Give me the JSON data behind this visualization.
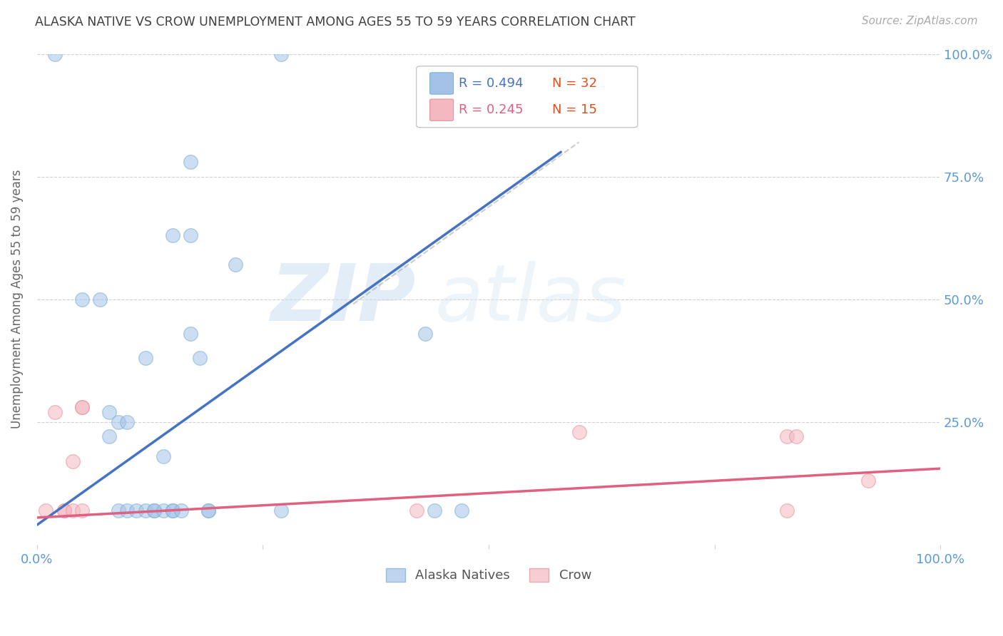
{
  "title": "ALASKA NATIVE VS CROW UNEMPLOYMENT AMONG AGES 55 TO 59 YEARS CORRELATION CHART",
  "source": "Source: ZipAtlas.com",
  "ylabel": "Unemployment Among Ages 55 to 59 years",
  "xlim": [
    0,
    1.0
  ],
  "ylim": [
    0,
    1.0
  ],
  "watermark_zip": "ZIP",
  "watermark_atlas": "atlas",
  "alaska_natives_color": "#a4c2e8",
  "alaska_natives_edge": "#7bafd4",
  "crow_color": "#f4b8c1",
  "crow_edge": "#e8909a",
  "alaska_line_color": "#4472c4",
  "crow_line_color": "#e06080",
  "alaska_scatter_x": [
    0.02,
    0.05,
    0.07,
    0.08,
    0.08,
    0.09,
    0.09,
    0.1,
    0.1,
    0.11,
    0.12,
    0.12,
    0.13,
    0.13,
    0.14,
    0.14,
    0.15,
    0.15,
    0.15,
    0.16,
    0.17,
    0.17,
    0.17,
    0.18,
    0.19,
    0.19,
    0.22,
    0.27,
    0.27,
    0.43,
    0.44,
    0.47
  ],
  "alaska_scatter_y": [
    1.0,
    0.5,
    0.5,
    0.27,
    0.22,
    0.07,
    0.25,
    0.25,
    0.07,
    0.07,
    0.38,
    0.07,
    0.07,
    0.07,
    0.18,
    0.07,
    0.63,
    0.07,
    0.07,
    0.07,
    0.78,
    0.63,
    0.43,
    0.38,
    0.07,
    0.07,
    0.57,
    1.0,
    0.07,
    0.43,
    0.07,
    0.07
  ],
  "crow_scatter_x": [
    0.01,
    0.02,
    0.03,
    0.03,
    0.04,
    0.04,
    0.05,
    0.05,
    0.05,
    0.42,
    0.6,
    0.83,
    0.83,
    0.84,
    0.92
  ],
  "crow_scatter_y": [
    0.07,
    0.27,
    0.07,
    0.07,
    0.07,
    0.17,
    0.28,
    0.28,
    0.07,
    0.07,
    0.23,
    0.07,
    0.22,
    0.22,
    0.13
  ],
  "alaska_line_x": [
    0.0,
    0.58
  ],
  "alaska_line_y": [
    0.04,
    0.8
  ],
  "crow_line_x": [
    0.0,
    1.0
  ],
  "crow_line_y": [
    0.055,
    0.155
  ],
  "background_color": "#ffffff",
  "grid_color": "#d0d0d0",
  "title_color": "#404040",
  "tick_color": "#5b9bd5",
  "r_color_blue": "#4472c4",
  "r_color_red": "#e06080",
  "n_color": "#e05020",
  "legend_R1": "R = 0.494",
  "legend_N1": "N = 32",
  "legend_R2": "R = 0.245",
  "legend_N2": "N = 15",
  "bottom_legend_alaska": "Alaska Natives",
  "bottom_legend_crow": "Crow"
}
